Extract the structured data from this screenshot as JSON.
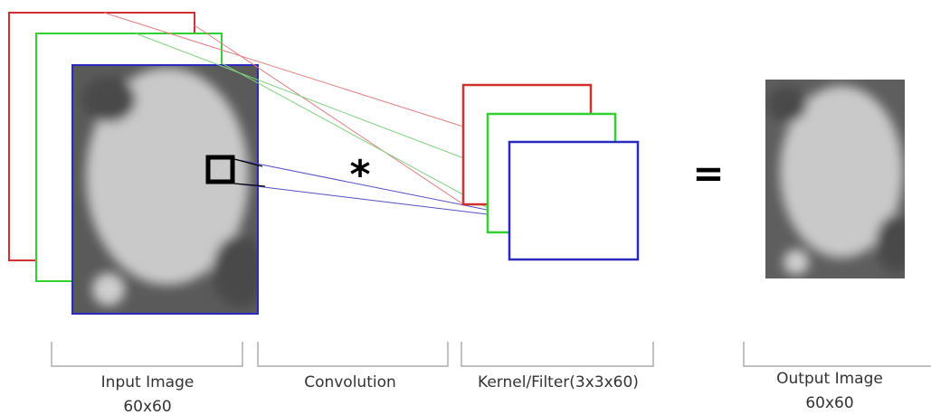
{
  "operator": "*",
  "equals": "=",
  "labels": [
    {
      "title": "Input Image",
      "size": "60x60"
    },
    {
      "title": "Convolution"
    },
    {
      "title": "Kernel/Filter(3x3x60)"
    },
    {
      "title": "Output Image",
      "size": "60x60"
    }
  ]
}
